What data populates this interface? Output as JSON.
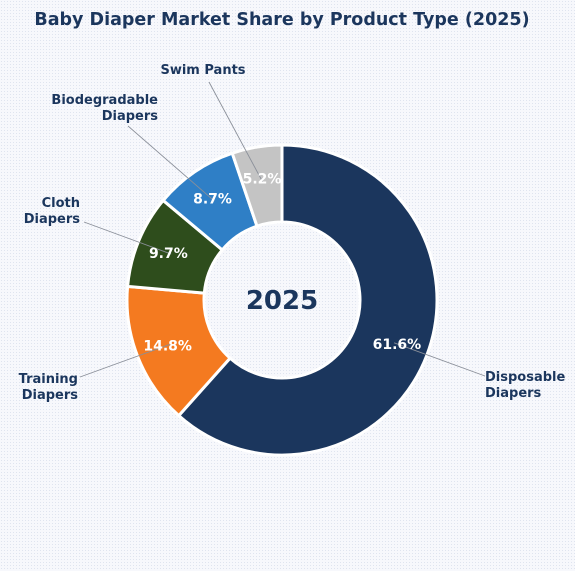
{
  "chart_data": {
    "type": "pie",
    "title": "Baby Diaper Market Share by Product Type (2025)",
    "center_label": "2025",
    "unit": "%",
    "categories": [
      "Disposable Diapers",
      "Training Diapers",
      "Cloth Diapers",
      "Biodegradable Diapers",
      "Swim Pants"
    ],
    "label_lines": [
      [
        "Disposable",
        "Diapers"
      ],
      [
        "Training",
        "Diapers"
      ],
      [
        "Cloth",
        "Diapers"
      ],
      [
        "Biodegradable",
        "Diapers"
      ],
      [
        "Swim Pants"
      ]
    ],
    "values": [
      61.6,
      14.8,
      9.7,
      8.7,
      5.2
    ],
    "value_labels": [
      "61.6%",
      "14.8%",
      "9.7%",
      "8.7%",
      "5.2%"
    ],
    "colors": [
      "#1b365d",
      "#f47a20",
      "#2e4d1c",
      "#2f7fc6",
      "#c4c4c4"
    ],
    "legend": "none",
    "grid": false
  }
}
